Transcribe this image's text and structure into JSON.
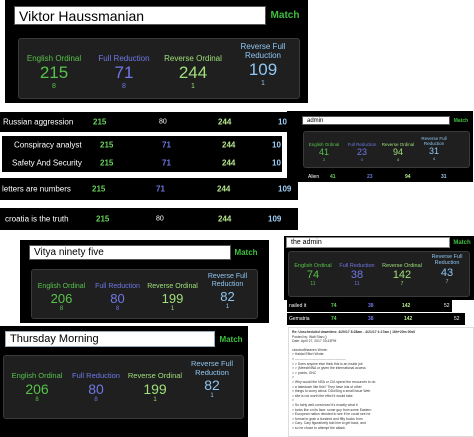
{
  "p1": {
    "input": "Viktor Haussmanian",
    "match": "Match",
    "cols": [
      {
        "label": "English Ordinal",
        "value": "215",
        "small": "8"
      },
      {
        "label": "Full Reduction",
        "value": "71",
        "small": "8"
      },
      {
        "label": "Reverse Ordinal",
        "value": "244",
        "small": "1"
      },
      {
        "label": "Reverse Full Reduction",
        "value": "109",
        "small": "1"
      }
    ]
  },
  "rows": [
    {
      "phrase": "Russian aggression",
      "eo": "215",
      "fr": "80",
      "ro": "244",
      "rfr": "10"
    },
    {
      "phrase": "Conspiracy analyst",
      "eo": "215",
      "fr": "71",
      "ro": "244",
      "rfr": "10"
    },
    {
      "phrase": "Safety And Security",
      "eo": "215",
      "fr": "71",
      "ro": "244",
      "rfr": "10"
    },
    {
      "phrase": "letters are numbers",
      "eo": "215",
      "fr": "71",
      "ro": "244",
      "rfr": "109"
    },
    {
      "phrase": "croatia is the truth",
      "eo": "215",
      "fr": "80",
      "ro": "244",
      "rfr": "109"
    }
  ],
  "admin1": {
    "input": "admin",
    "match": "Match",
    "cols": [
      {
        "label": "English Ordinal",
        "value": "41",
        "small": "2"
      },
      {
        "label": "Full Reduction",
        "value": "23",
        "small": "5"
      },
      {
        "label": "Reverse Ordinal",
        "value": "94",
        "small": "4"
      },
      {
        "label": "Reverse Full Reduction",
        "value": "31",
        "small": "4"
      }
    ],
    "row": {
      "phrase": "Alien",
      "eo": "41",
      "fr": "23",
      "ro": "94",
      "rfr": "31"
    }
  },
  "p2": {
    "input": "Vitya ninety five",
    "match": "Match",
    "cols": [
      {
        "label": "English Ordinal",
        "value": "206",
        "small": "8"
      },
      {
        "label": "Full Reduction",
        "value": "80",
        "small": "8"
      },
      {
        "label": "Reverse Ordinal",
        "value": "199",
        "small": "1"
      },
      {
        "label": "Reverse Full Reduction",
        "value": "82",
        "small": "1"
      }
    ]
  },
  "admin2": {
    "input": "the admin",
    "match": "Match",
    "cols": [
      {
        "label": "English Ordinal",
        "value": "74",
        "small": "11"
      },
      {
        "label": "Full Reduction",
        "value": "38",
        "small": "11"
      },
      {
        "label": "Reverse Ordinal",
        "value": "142",
        "small": "7"
      },
      {
        "label": "Reverse Full Reduction",
        "value": "43",
        "small": "7"
      }
    ],
    "rows": [
      {
        "phrase": "nailed it",
        "eo": "74",
        "fr": "38",
        "ro": "142",
        "rfr": "52"
      },
      {
        "phrase": "Gematria",
        "eo": "74",
        "fr": "38",
        "ro": "142",
        "rfr": "52"
      }
    ]
  },
  "p3": {
    "input": "Thursday Morning",
    "match": "Match",
    "cols": [
      {
        "label": "English Ordinal",
        "value": "206",
        "small": "8"
      },
      {
        "label": "Full Reduction",
        "value": "80",
        "small": "8"
      },
      {
        "label": "Reverse Ordinal",
        "value": "199",
        "small": "1"
      },
      {
        "label": "Reverse Full Reduction",
        "value": "82",
        "small": "1"
      }
    ]
  },
  "doc": {
    "subject": "Re: Unscheduled downtime. 4/20/17 8:28am - 4/21/17 4:17am | 16h+20m 00s0",
    "posted_by": "Posted by: Walt Stan ()",
    "date": "Date: April 27, 2017 03:43PM",
    "quote_header": "cloudsoftheaven Wrote:",
    "lines": [
      "> Haldai Effort Wrote:",
      "> ---------------------------------------------",
      "> > Does anyone else think this is an inside job",
      "> > (MeeshNNA or given the international access",
      "> > points, GNC",
      "> ",
      "> Why would the NSA or CIA spend the resources to do",
      "> a takedown like this? They have lots of other",
      "> things to worry about. DDoSing a small issue Web",
      "> site is not worth the effort it would take.",
      "> ",
      "> So fairly well-convinced it's exactly what it",
      "> looks like on its face: some guy from some Eastern",
      "> European nation decided to see if he could see he",
      "> format to grab a hundred and fifty bucks from",
      "> Cary. Cary figuratively told him to get back, and",
      "> so he chose to attempt the attack."
    ]
  }
}
